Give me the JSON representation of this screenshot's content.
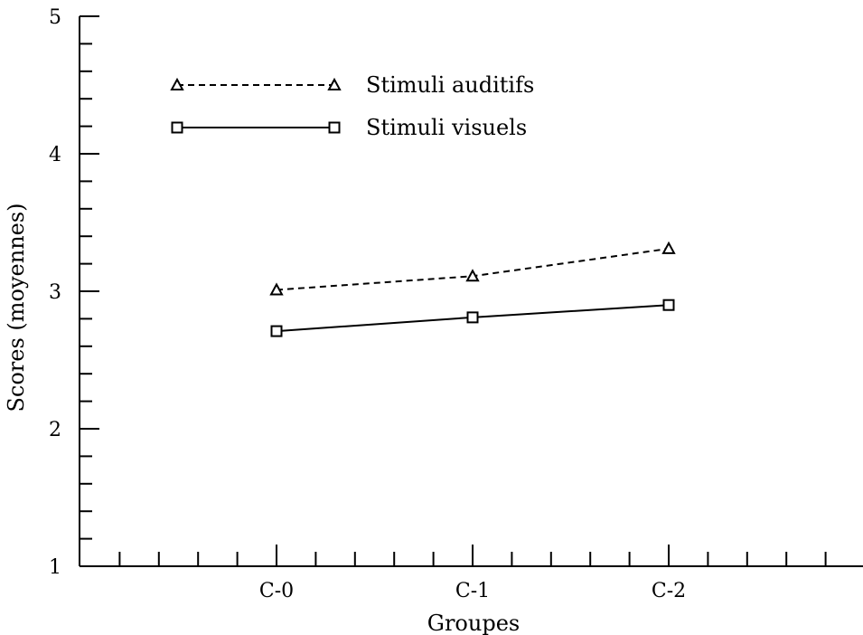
{
  "chart_data": {
    "type": "line",
    "title": "",
    "xlabel": "Groupes",
    "ylabel": "Scores (moyennes)",
    "ylim": [
      1,
      5
    ],
    "yticks": [
      "1",
      "2",
      "3",
      "4",
      "5"
    ],
    "categories": [
      "C-0",
      "C-1",
      "C-2"
    ],
    "grid": false,
    "legend_position": "top-left",
    "series": [
      {
        "name": "Stimuli auditifs",
        "values": [
          3.01,
          3.11,
          3.31
        ],
        "marker": "triangle",
        "linestyle": "dashed",
        "color": "#000000"
      },
      {
        "name": "Stimuli visuels",
        "values": [
          2.71,
          2.81,
          2.9
        ],
        "marker": "square",
        "linestyle": "solid",
        "color": "#000000"
      }
    ]
  }
}
